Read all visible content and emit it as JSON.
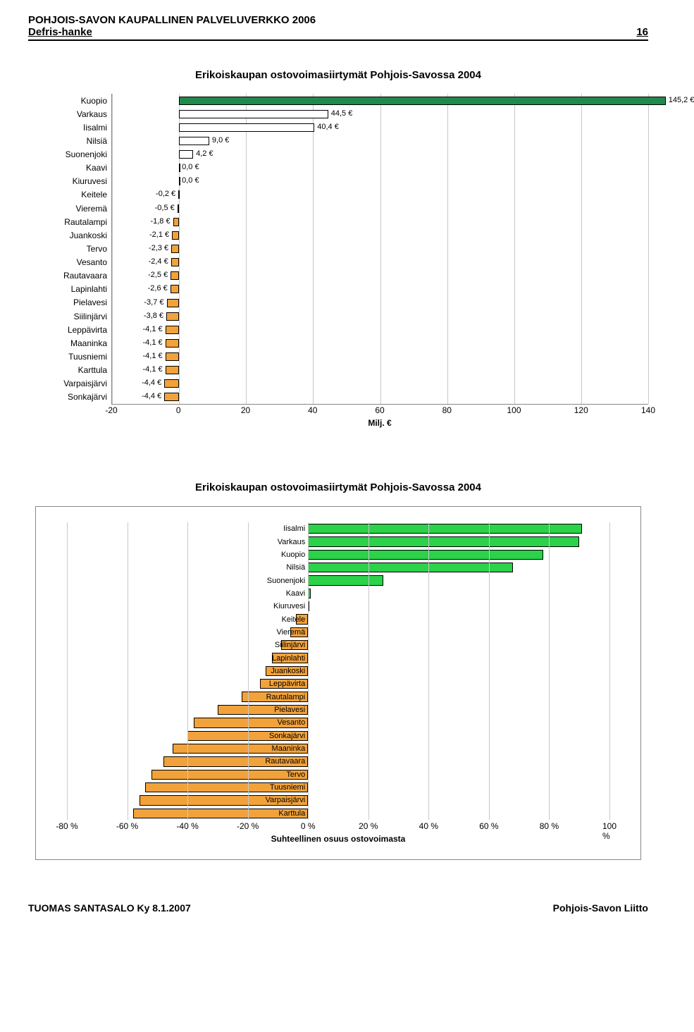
{
  "header": {
    "line1": "POHJOIS-SAVON  KAUPALLINEN PALVELUVERKKO 2006",
    "line2_left": "Defris-hanke",
    "line2_right": "16"
  },
  "chart1": {
    "title": "Erikoiskaupan ostovoimasiirtymät Pohjois-Savossa 2004",
    "xlabel": "Milj. €",
    "xmin": -20,
    "xmax": 140,
    "xtick_step": 20,
    "bar_border": "#000000",
    "pos_colors": {
      "default": "#ffffff",
      "kuopio": "#1f8a4c"
    },
    "neg_color": "#f2a23a",
    "rows": [
      {
        "label": "Kuopio",
        "value": 145.2,
        "display": "145,2 €",
        "color": "#1f8a4c",
        "kind": "pos"
      },
      {
        "label": "Varkaus",
        "value": 44.5,
        "display": "44,5 €",
        "color": "#ffffff",
        "kind": "pos"
      },
      {
        "label": "Iisalmi",
        "value": 40.4,
        "display": "40,4 €",
        "color": "#ffffff",
        "kind": "pos"
      },
      {
        "label": "Nilsiä",
        "value": 9.0,
        "display": "9,0 €",
        "color": "#ffffff",
        "kind": "pos"
      },
      {
        "label": "Suonenjoki",
        "value": 4.2,
        "display": "4,2 €",
        "color": "#ffffff",
        "kind": "pos"
      },
      {
        "label": "Kaavi",
        "value": 0.0,
        "display": "0,0 €",
        "color": "#ffffff",
        "kind": "pos"
      },
      {
        "label": "Kiuruvesi",
        "value": 0.0,
        "display": "0,0 €",
        "color": "#ffffff",
        "kind": "pos"
      },
      {
        "label": "Keitele",
        "value": -0.2,
        "display": "-0,2 €",
        "color": "#f2a23a",
        "kind": "neg"
      },
      {
        "label": "Vieremä",
        "value": -0.5,
        "display": "-0,5 €",
        "color": "#f2a23a",
        "kind": "neg"
      },
      {
        "label": "Rautalampi",
        "value": -1.8,
        "display": "-1,8 €",
        "color": "#f2a23a",
        "kind": "neg"
      },
      {
        "label": "Juankoski",
        "value": -2.1,
        "display": "-2,1 €",
        "color": "#f2a23a",
        "kind": "neg"
      },
      {
        "label": "Tervo",
        "value": -2.3,
        "display": "-2,3 €",
        "color": "#f2a23a",
        "kind": "neg"
      },
      {
        "label": "Vesanto",
        "value": -2.4,
        "display": "-2,4 €",
        "color": "#f2a23a",
        "kind": "neg"
      },
      {
        "label": "Rautavaara",
        "value": -2.5,
        "display": "-2,5 €",
        "color": "#f2a23a",
        "kind": "neg"
      },
      {
        "label": "Lapinlahti",
        "value": -2.6,
        "display": "-2,6 €",
        "color": "#f2a23a",
        "kind": "neg"
      },
      {
        "label": "Pielavesi",
        "value": -3.7,
        "display": "-3,7 €",
        "color": "#f2a23a",
        "kind": "neg"
      },
      {
        "label": "Siilinjärvi",
        "value": -3.8,
        "display": "-3,8 €",
        "color": "#f2a23a",
        "kind": "neg"
      },
      {
        "label": "Leppävirta",
        "value": -4.1,
        "display": "-4,1 €",
        "color": "#f2a23a",
        "kind": "neg"
      },
      {
        "label": "Maaninka",
        "value": -4.1,
        "display": "-4,1 €",
        "color": "#f2a23a",
        "kind": "neg"
      },
      {
        "label": "Tuusniemi",
        "value": -4.1,
        "display": "-4,1 €",
        "color": "#f2a23a",
        "kind": "neg"
      },
      {
        "label": "Karttula",
        "value": -4.1,
        "display": "-4,1 €",
        "color": "#f2a23a",
        "kind": "neg"
      },
      {
        "label": "Varpaisjärvi",
        "value": -4.4,
        "display": "-4,4 €",
        "color": "#f2a23a",
        "kind": "neg"
      },
      {
        "label": "Sonkajärvi",
        "value": -4.4,
        "display": "-4,4 €",
        "color": "#f2a23a",
        "kind": "neg"
      }
    ]
  },
  "chart2": {
    "title": "Erikoiskaupan ostovoimasiirtymät Pohjois-Savossa 2004",
    "xlabel": "Suhteellinen osuus ostovoimasta",
    "xmin": -80,
    "xmax": 100,
    "xtick_step": 20,
    "bar_border": "#000000",
    "pos_color": "#2bd24a",
    "neg_color": "#f2a23a",
    "rows": [
      {
        "label": "Iisalmi",
        "value": 91,
        "kind": "pos"
      },
      {
        "label": "Varkaus",
        "value": 90,
        "kind": "pos"
      },
      {
        "label": "Kuopio",
        "value": 78,
        "kind": "pos"
      },
      {
        "label": "Nilsiä",
        "value": 68,
        "kind": "pos"
      },
      {
        "label": "Suonenjoki",
        "value": 25,
        "kind": "pos"
      },
      {
        "label": "Kaavi",
        "value": 1,
        "kind": "pos"
      },
      {
        "label": "Kiuruvesi",
        "value": 0.5,
        "kind": "pos"
      },
      {
        "label": "Keitele",
        "value": -4,
        "kind": "neg"
      },
      {
        "label": "Vieremä",
        "value": -6,
        "kind": "neg"
      },
      {
        "label": "Siilinjärvi",
        "value": -9,
        "kind": "neg"
      },
      {
        "label": "Lapinlahti",
        "value": -12,
        "kind": "neg"
      },
      {
        "label": "Juankoski",
        "value": -14,
        "kind": "neg"
      },
      {
        "label": "Leppävirta",
        "value": -16,
        "kind": "neg"
      },
      {
        "label": "Rautalampi",
        "value": -22,
        "kind": "neg"
      },
      {
        "label": "Pielavesi",
        "value": -30,
        "kind": "neg"
      },
      {
        "label": "Vesanto",
        "value": -38,
        "kind": "neg"
      },
      {
        "label": "Sonkajärvi",
        "value": -40,
        "kind": "neg"
      },
      {
        "label": "Maaninka",
        "value": -45,
        "kind": "neg"
      },
      {
        "label": "Rautavaara",
        "value": -48,
        "kind": "neg"
      },
      {
        "label": "Tervo",
        "value": -52,
        "kind": "neg"
      },
      {
        "label": "Tuusniemi",
        "value": -54,
        "kind": "neg"
      },
      {
        "label": "Varpaisjärvi",
        "value": -56,
        "kind": "neg"
      },
      {
        "label": "Karttula",
        "value": -58,
        "kind": "neg"
      }
    ]
  },
  "footer": {
    "left": "TUOMAS SANTASALO Ky   8.1.2007",
    "right": "Pohjois-Savon Liitto"
  }
}
